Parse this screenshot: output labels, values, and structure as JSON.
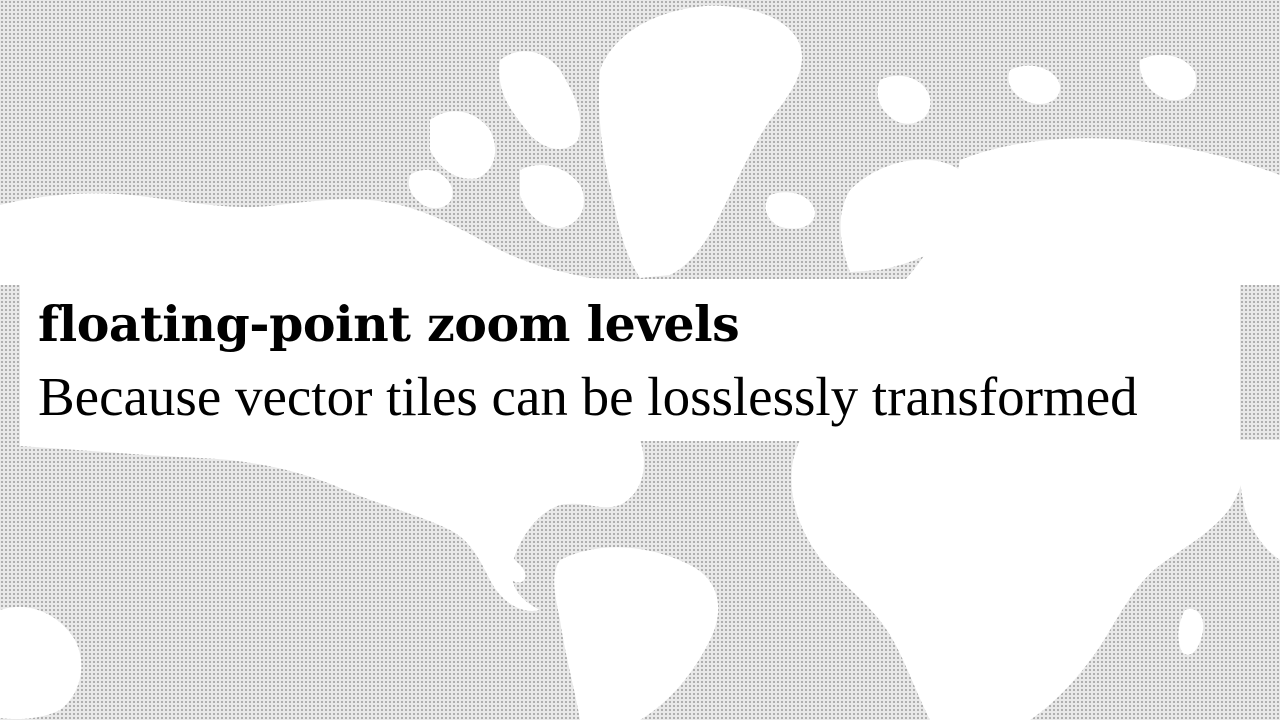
{
  "slide": {
    "title": "floating-point zoom levels",
    "subtitle": "Because vector tiles can be losslessly transformed"
  },
  "theme": {
    "background": "#e9e9e9",
    "dot_color": "#a9a9a9",
    "land_color": "#ffffff",
    "text_color": "#000000"
  },
  "background_image": {
    "icon": "world-map-dot-grid"
  }
}
